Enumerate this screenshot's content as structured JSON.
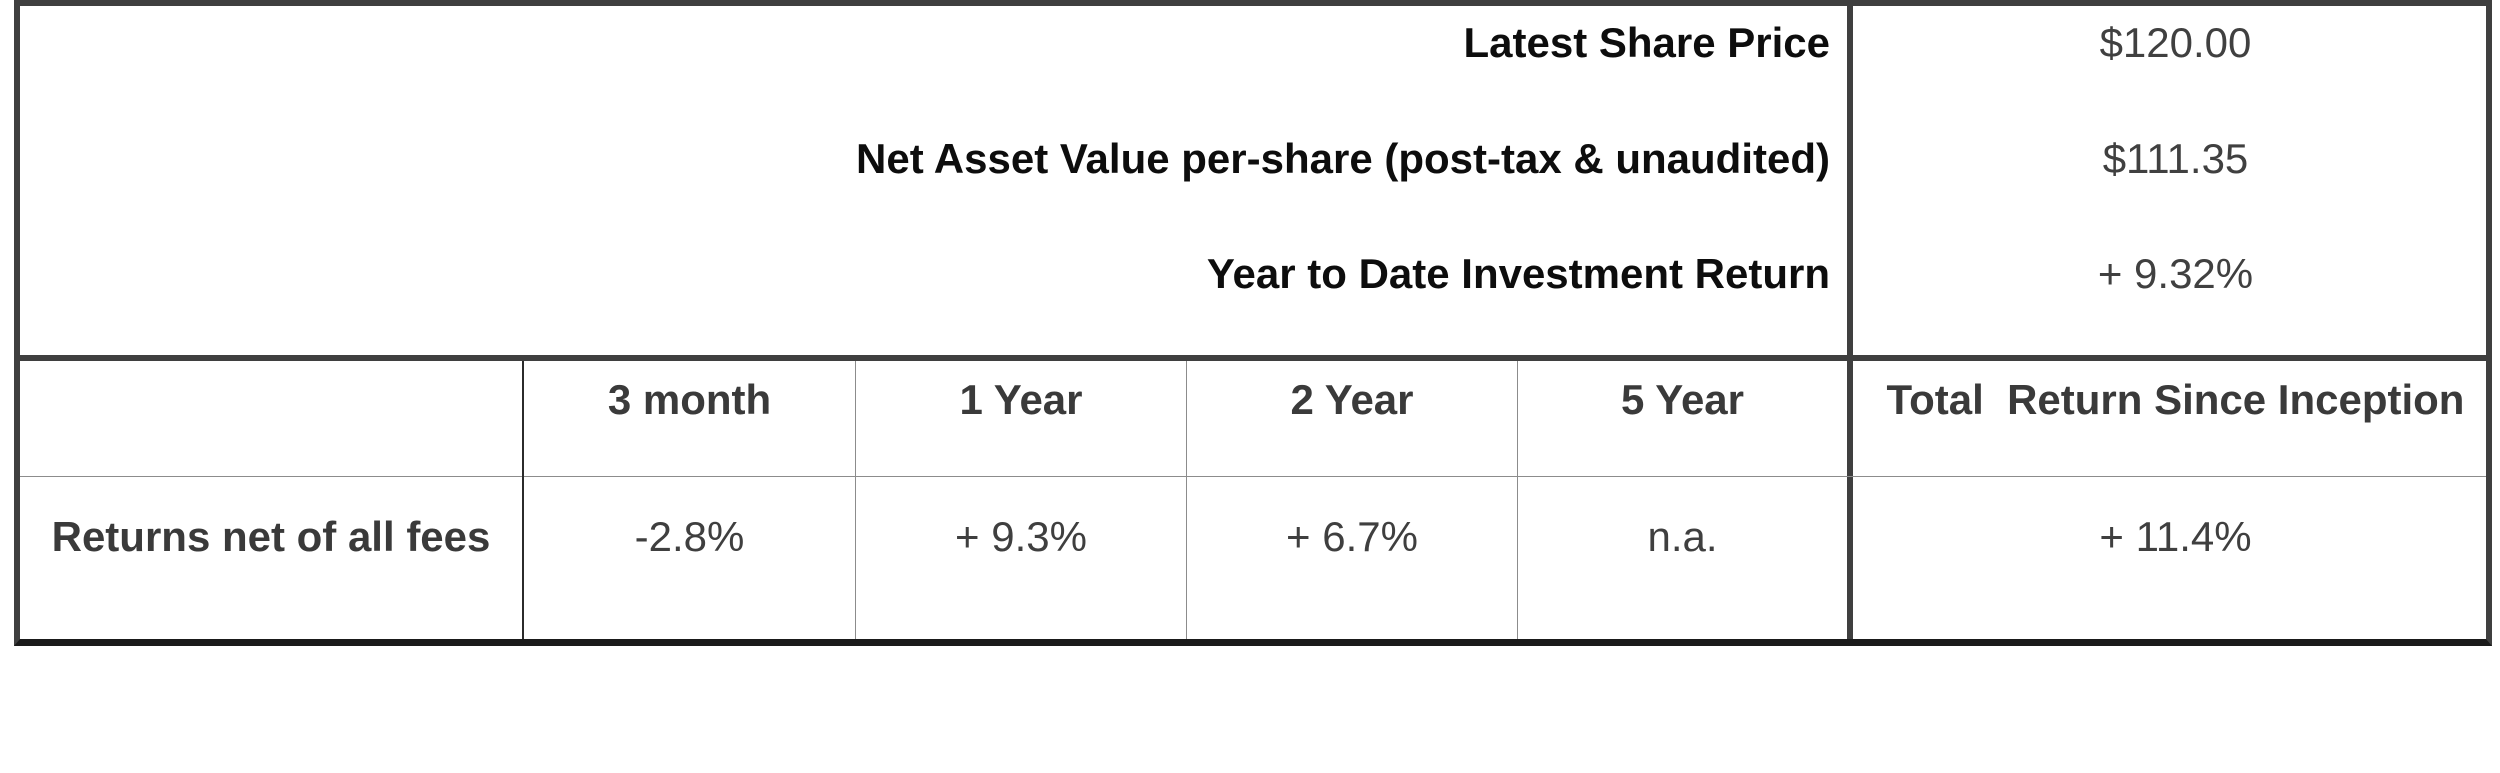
{
  "summary": {
    "rows": [
      {
        "label": "Latest Share Price",
        "value": "$120.00"
      },
      {
        "label": "Net Asset Value per-share (post-tax & unaudited)",
        "value": "$111.35"
      },
      {
        "label": "Year to Date Investment Return",
        "value": "+ 9.32%"
      }
    ]
  },
  "returns": {
    "headers": [
      "3 month",
      "1 Year",
      "2 Year",
      "5 Year",
      "Total  Return Since Inception"
    ],
    "row_label": "Returns net of all fees",
    "values": [
      "-2.8%",
      "+ 9.3%",
      "+ 6.7%",
      "n.a.",
      "+ 11.4%"
    ]
  }
}
